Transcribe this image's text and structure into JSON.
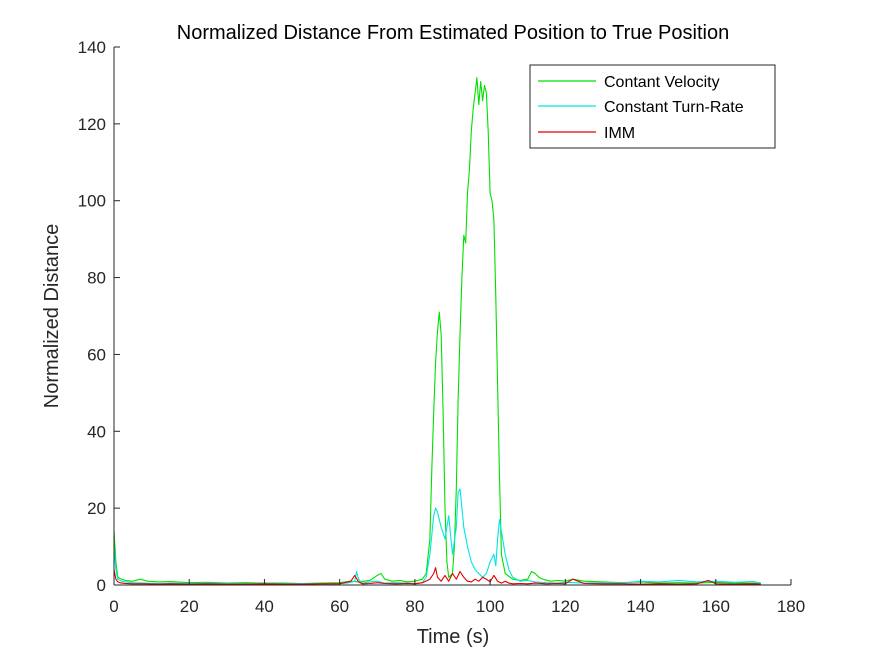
{
  "chart_data": {
    "type": "line",
    "title": "Normalized Distance From Estimated Position to True Position",
    "xlabel": "Time (s)",
    "ylabel": "Normalized Distance",
    "xlim": [
      0,
      180
    ],
    "ylim": [
      0,
      140
    ],
    "xticks": [
      0,
      20,
      40,
      60,
      80,
      100,
      120,
      140,
      160,
      180
    ],
    "yticks": [
      0,
      20,
      40,
      60,
      80,
      100,
      120,
      140
    ],
    "xtick_labels": [
      "0",
      "20",
      "40",
      "60",
      "80",
      "100",
      "120",
      "140",
      "160",
      "180"
    ],
    "ytick_labels": [
      "0",
      "20",
      "40",
      "60",
      "80",
      "100",
      "120",
      "140"
    ],
    "grid": false,
    "legend_position": "top-right",
    "series": [
      {
        "name": "Contant Velocity",
        "color": "#00e000",
        "x": [
          0,
          0.5,
          1,
          2,
          3,
          5,
          7,
          9,
          12,
          15,
          20,
          25,
          30,
          35,
          40,
          45,
          50,
          55,
          60,
          63,
          65,
          68,
          70,
          71,
          72,
          74,
          76,
          78,
          80,
          82,
          83,
          84,
          84.5,
          85,
          85.5,
          86,
          86.5,
          87,
          87.5,
          88,
          88.5,
          89,
          90,
          90.5,
          91,
          91.5,
          92,
          92.5,
          93,
          93.5,
          94,
          94.5,
          95,
          95.5,
          96,
          96.5,
          97,
          97.5,
          98,
          98.5,
          99,
          99.5,
          100,
          100.5,
          101,
          101.5,
          102,
          102.5,
          103,
          104,
          106,
          108,
          110,
          111,
          112,
          113,
          114,
          116,
          118,
          120,
          122,
          125,
          130,
          135,
          140,
          145,
          150,
          155,
          160,
          165,
          170,
          172
        ],
        "y": [
          14,
          6,
          2,
          1.5,
          1.2,
          1,
          1.5,
          1,
          0.8,
          0.9,
          0.6,
          0.7,
          0.5,
          0.6,
          0.5,
          0.5,
          0.4,
          0.5,
          0.6,
          1,
          0.8,
          1.2,
          2.5,
          3,
          1.5,
          1,
          1.2,
          0.8,
          1,
          1.5,
          3,
          12,
          30,
          45,
          58,
          66,
          71,
          65,
          45,
          20,
          6,
          2,
          3,
          10,
          25,
          48,
          65,
          80,
          91,
          89,
          102,
          108,
          118,
          124,
          128,
          132,
          125,
          131,
          126,
          130,
          128,
          118,
          102,
          100,
          95,
          75,
          52,
          28,
          8,
          3,
          1.5,
          1.2,
          1.5,
          3.5,
          3,
          2,
          1.5,
          1,
          1.2,
          1,
          1.5,
          1,
          0.8,
          0.6,
          0.8,
          0.5,
          0.6,
          0.5,
          0.7,
          0.5,
          0.5,
          0.4
        ]
      },
      {
        "name": "Constant Turn-Rate",
        "color": "#00e5e5",
        "x": [
          0,
          0.5,
          1,
          2,
          3,
          5,
          8,
          12,
          15,
          20,
          25,
          30,
          35,
          40,
          45,
          50,
          55,
          60,
          62,
          64,
          64.5,
          65,
          66,
          68,
          70,
          72,
          75,
          78,
          80,
          82,
          83,
          84,
          85,
          85.5,
          86,
          86.5,
          87,
          88,
          89,
          90,
          91,
          91.5,
          92,
          92.5,
          93,
          94,
          95,
          96,
          97,
          98,
          99,
          100,
          101,
          101.5,
          102,
          102.5,
          103,
          104,
          105,
          106,
          108,
          110,
          112,
          115,
          118,
          120,
          125,
          130,
          135,
          140,
          145,
          150,
          155,
          160,
          165,
          170,
          172
        ],
        "y": [
          10,
          4,
          1.5,
          1,
          0.8,
          0.6,
          0.5,
          0.4,
          0.5,
          0.4,
          0.5,
          0.4,
          0.3,
          0.4,
          0.3,
          0.4,
          0.3,
          0.4,
          0.5,
          1,
          3.5,
          1.5,
          0.5,
          0.8,
          1,
          0.5,
          0.6,
          0.5,
          0.4,
          0.6,
          2,
          8,
          18,
          20,
          19,
          17,
          15,
          12,
          18,
          8,
          15,
          24,
          25,
          20,
          15,
          10,
          6,
          4,
          3,
          2,
          3,
          6,
          8,
          5,
          12,
          17,
          14,
          8,
          4,
          2,
          1,
          1.2,
          0.8,
          0.6,
          0.5,
          0.7,
          0.5,
          0.6,
          0.5,
          1,
          0.8,
          1.2,
          0.8,
          1,
          0.7,
          0.9,
          0.5
        ]
      },
      {
        "name": "IMM",
        "color": "#e00000",
        "x": [
          0,
          0.5,
          1,
          2,
          3,
          5,
          8,
          12,
          15,
          20,
          25,
          30,
          35,
          40,
          45,
          50,
          55,
          60,
          63,
          64,
          65,
          66,
          68,
          70,
          72,
          75,
          78,
          80,
          82,
          84,
          85,
          85.5,
          86,
          87,
          88,
          89,
          90,
          91,
          92,
          93,
          94,
          95,
          96,
          97,
          98,
          99,
          100,
          101,
          102,
          103,
          104,
          105,
          106,
          108,
          110,
          112,
          115,
          118,
          120,
          122,
          125,
          130,
          135,
          140,
          145,
          150,
          155,
          158,
          160,
          165,
          170,
          172
        ],
        "y": [
          4,
          1.5,
          0.8,
          0.5,
          0.4,
          0.3,
          0.3,
          0.2,
          0.3,
          0.2,
          0.3,
          0.2,
          0.2,
          0.3,
          0.2,
          0.2,
          0.3,
          0.3,
          1,
          2.5,
          0.8,
          0.3,
          0.4,
          0.6,
          0.4,
          0.3,
          0.4,
          0.3,
          0.6,
          1.5,
          3,
          4.5,
          2,
          1,
          2.5,
          1,
          3,
          1.5,
          3.5,
          2,
          1,
          0.8,
          1.5,
          1,
          2,
          1.5,
          0.8,
          2.5,
          1,
          0.5,
          1,
          0.5,
          0.3,
          0.4,
          0.3,
          0.5,
          0.3,
          0.4,
          0.3,
          1.5,
          0.4,
          0.3,
          0.3,
          0.2,
          0.3,
          0.2,
          0.3,
          1.2,
          0.3,
          0.2,
          0.3,
          0.2
        ]
      }
    ]
  }
}
